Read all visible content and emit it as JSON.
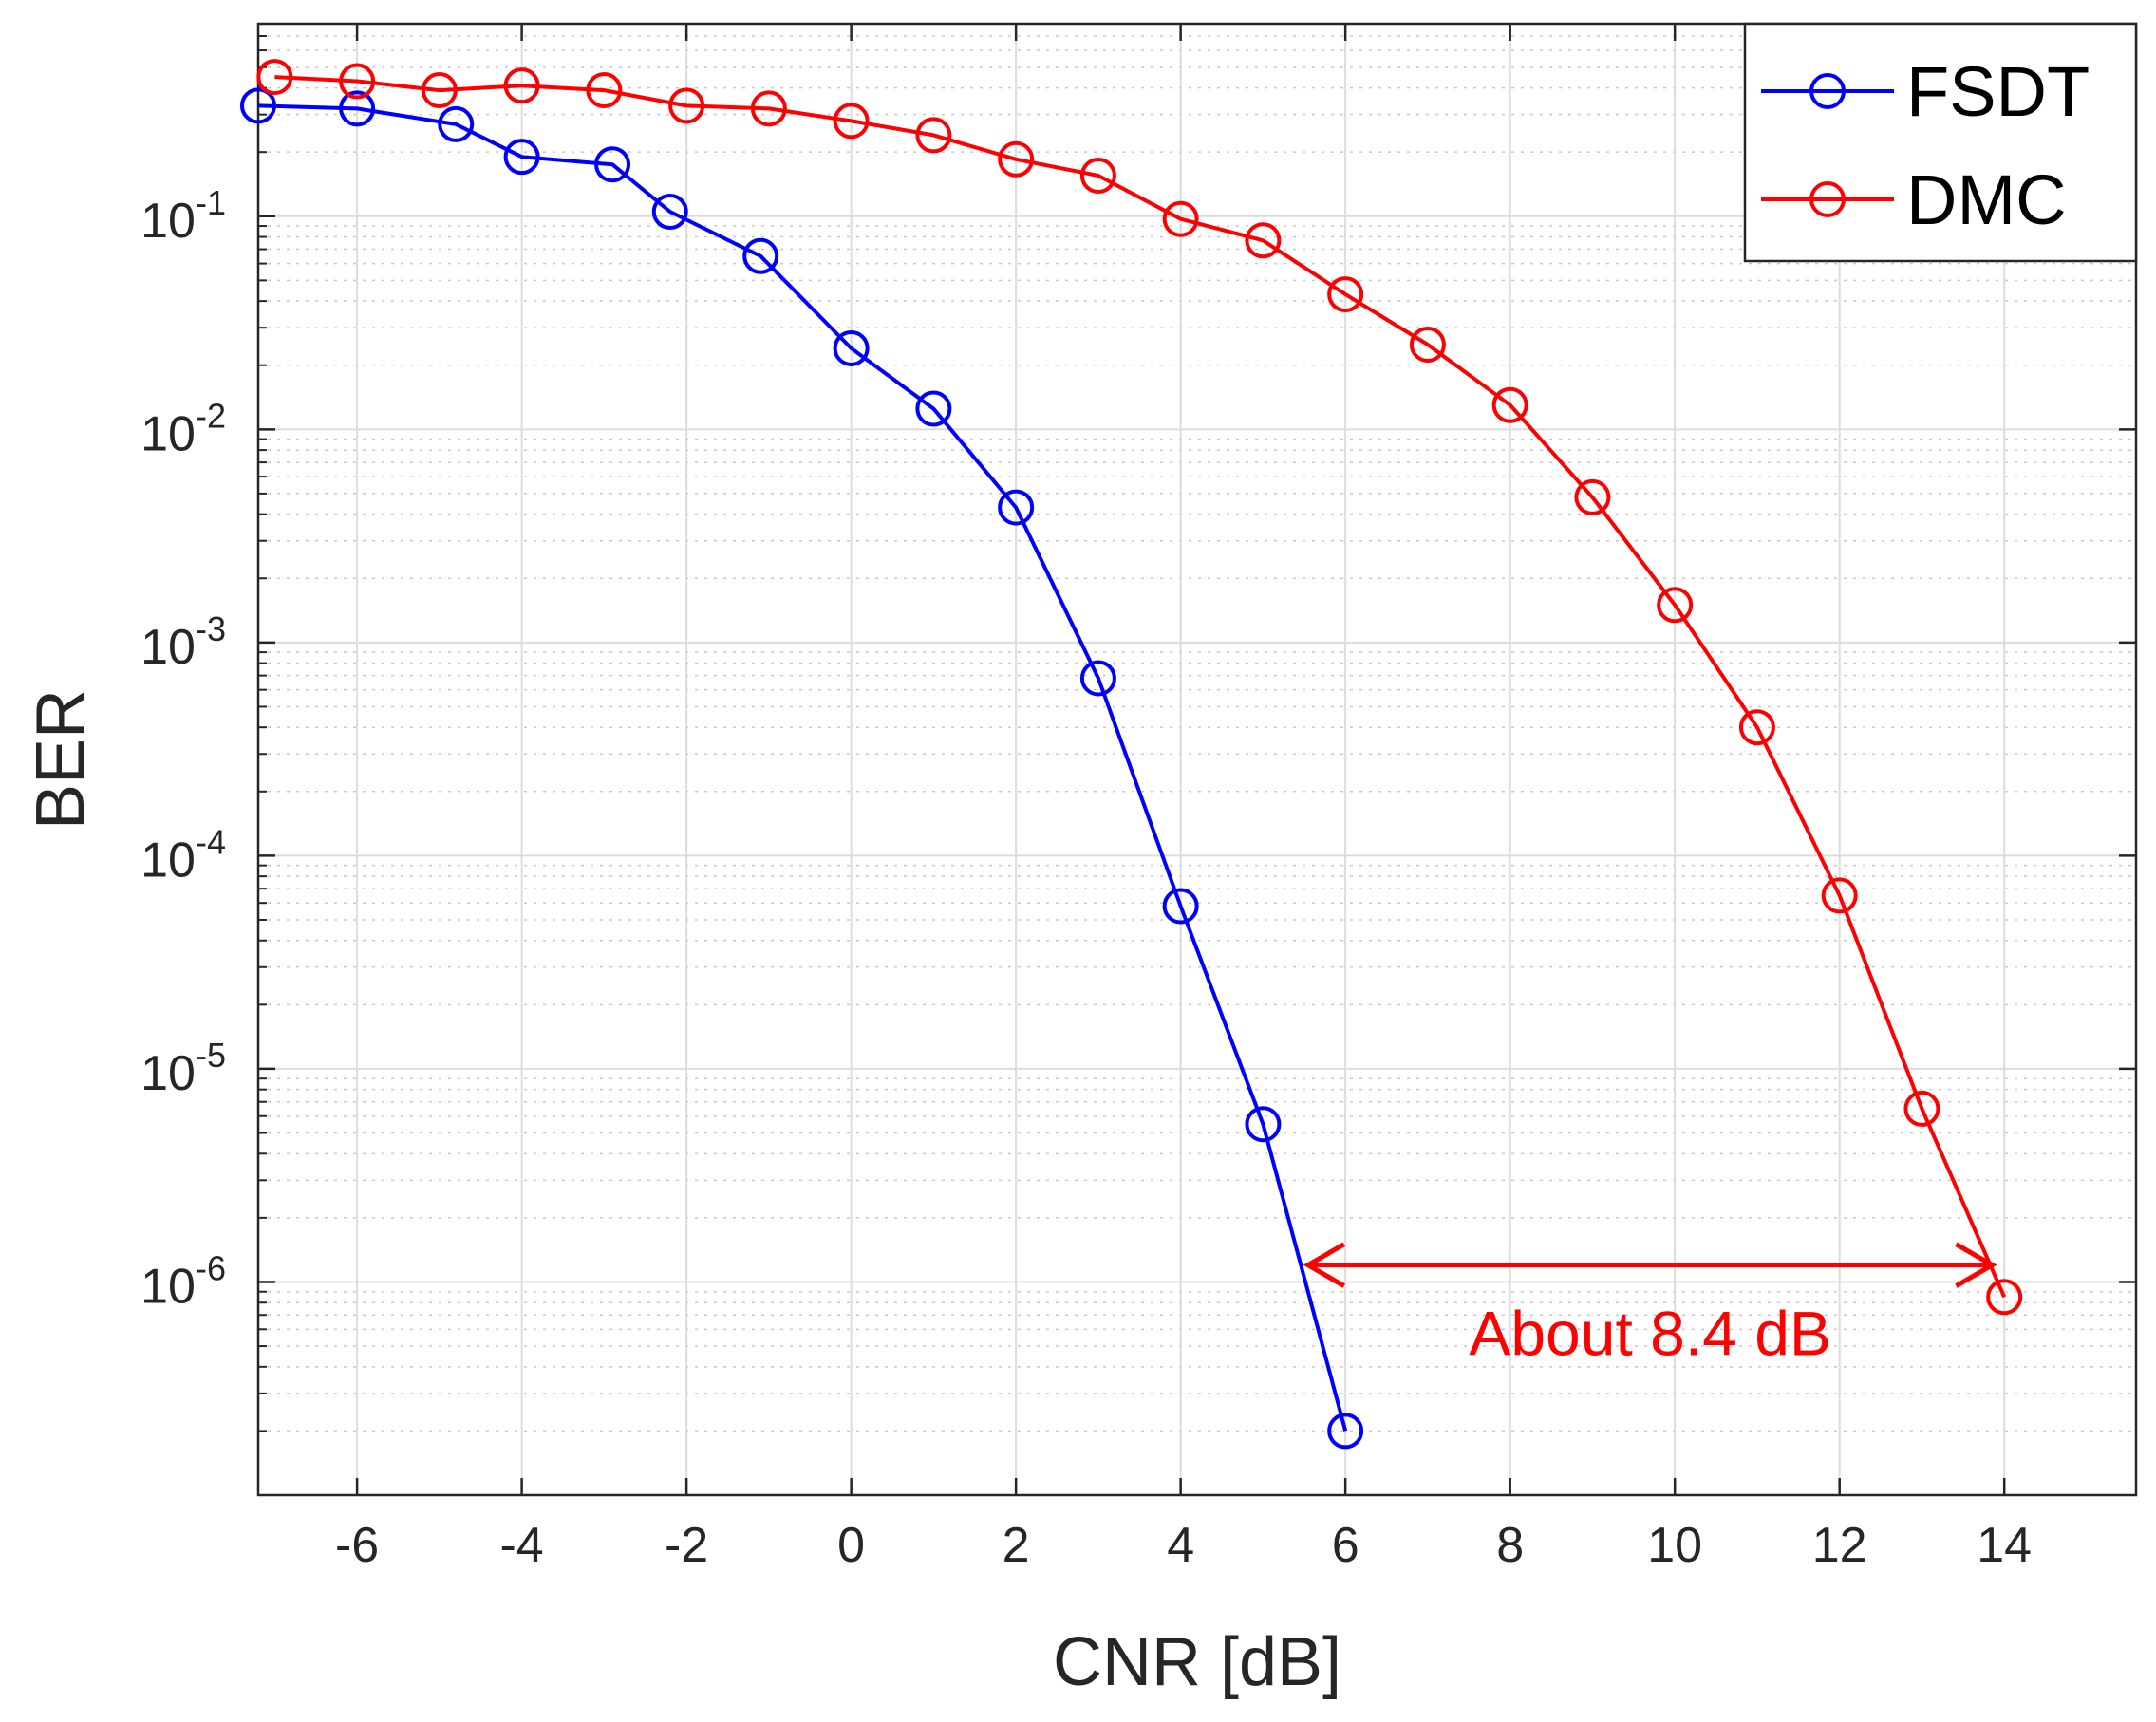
{
  "chart_data": {
    "type": "line",
    "title": "",
    "xlabel": "CNR [dB]",
    "ylabel": "BER",
    "xlim": [
      -7.2,
      15.6
    ],
    "ylim": [
      1e-07,
      0.8
    ],
    "yscale": "log",
    "grid": true,
    "xticks": [
      -6,
      -4,
      -2,
      0,
      2,
      4,
      6,
      8,
      10,
      12,
      14
    ],
    "xtick_labels": [
      "-6",
      "-4",
      "-2",
      "0",
      "2",
      "4",
      "6",
      "8",
      "10",
      "12",
      "14"
    ],
    "yticks": [
      {
        "value": 0.1,
        "base": "10",
        "exp": "-1"
      },
      {
        "value": 0.01,
        "base": "10",
        "exp": "-2"
      },
      {
        "value": 0.001,
        "base": "10",
        "exp": "-3"
      },
      {
        "value": 0.0001,
        "base": "10",
        "exp": "-4"
      },
      {
        "value": 1e-05,
        "base": "10",
        "exp": "-5"
      },
      {
        "value": 1e-06,
        "base": "10",
        "exp": "-6"
      }
    ],
    "legend_position": "top-right",
    "series": [
      {
        "name": "FSDT",
        "color": "#0000ff",
        "marker": "circle",
        "x": [
          -7.2,
          -6,
          -4.8,
          -4,
          -2.9,
          -2.2,
          -1.1,
          0,
          1,
          2,
          3,
          4,
          5,
          6
        ],
        "y": [
          0.33,
          0.32,
          0.27,
          0.19,
          0.175,
          0.105,
          0.065,
          0.024,
          0.0125,
          0.0043,
          0.00068,
          5.8e-05,
          5.5e-06,
          2e-07
        ]
      },
      {
        "name": "DMC",
        "color": "#ff0000",
        "marker": "circle",
        "x": [
          -7,
          -6,
          -5,
          -4,
          -3,
          -2,
          -1,
          0,
          1,
          2,
          3,
          4,
          5,
          6,
          7,
          8,
          9,
          10,
          11,
          12,
          13,
          14
        ],
        "y": [
          0.45,
          0.43,
          0.39,
          0.41,
          0.39,
          0.33,
          0.32,
          0.28,
          0.24,
          0.185,
          0.155,
          0.097,
          0.077,
          0.043,
          0.025,
          0.013,
          0.0048,
          0.0015,
          0.0004,
          6.5e-05,
          6.5e-06,
          8.5e-07
        ]
      }
    ],
    "annotation": {
      "text": "About 8.4 dB",
      "color": "#ff0000",
      "arrow_from_x": 5.5,
      "arrow_to_x": 13.9,
      "arrow_y": 1.2e-06
    }
  }
}
